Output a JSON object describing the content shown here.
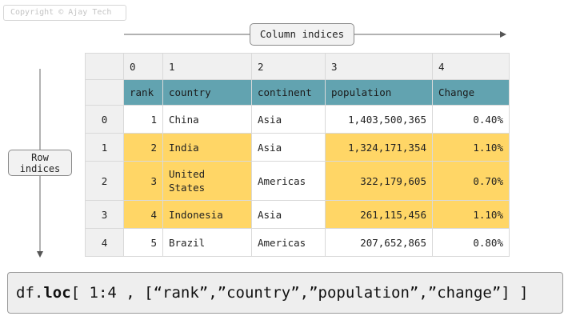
{
  "copyright": "Copyright © Ajay Tech",
  "labels": {
    "column_indices": "Column indices",
    "row_indices_line1": "Row",
    "row_indices_line2": "indices"
  },
  "table": {
    "column_indices": [
      "0",
      "1",
      "2",
      "3",
      "4"
    ],
    "headers": [
      "rank",
      "country",
      "continent",
      "population",
      "Change"
    ],
    "rows": [
      {
        "index": "0",
        "rank": "1",
        "country": "China",
        "continent": "Asia",
        "population": "1,403,500,365",
        "change": "0.40%"
      },
      {
        "index": "1",
        "rank": "2",
        "country": "India",
        "continent": "Asia",
        "population": "1,324,171,354",
        "change": "1.10%"
      },
      {
        "index": "2",
        "rank": "3",
        "country": "United States",
        "continent": "Americas",
        "population": "322,179,605",
        "change": "0.70%"
      },
      {
        "index": "3",
        "rank": "4",
        "country": "Indonesia",
        "continent": "Asia",
        "population": "261,115,456",
        "change": "1.10%"
      },
      {
        "index": "4",
        "rank": "5",
        "country": "Brazil",
        "continent": "Americas",
        "population": "207,652,865",
        "change": "0.80%"
      }
    ],
    "highlighted_rows": [
      "1",
      "2",
      "3"
    ],
    "highlighted_columns": [
      "rank",
      "population",
      "Change"
    ]
  },
  "code": {
    "prefix": "df.",
    "keyword": "loc",
    "suffix": "[ 1:4 , [“rank”,”country”,”population”,”change”] ]"
  },
  "colors": {
    "header": "#62a3b0",
    "highlight": "#ffd666",
    "index_bg": "#f0f0f0"
  }
}
